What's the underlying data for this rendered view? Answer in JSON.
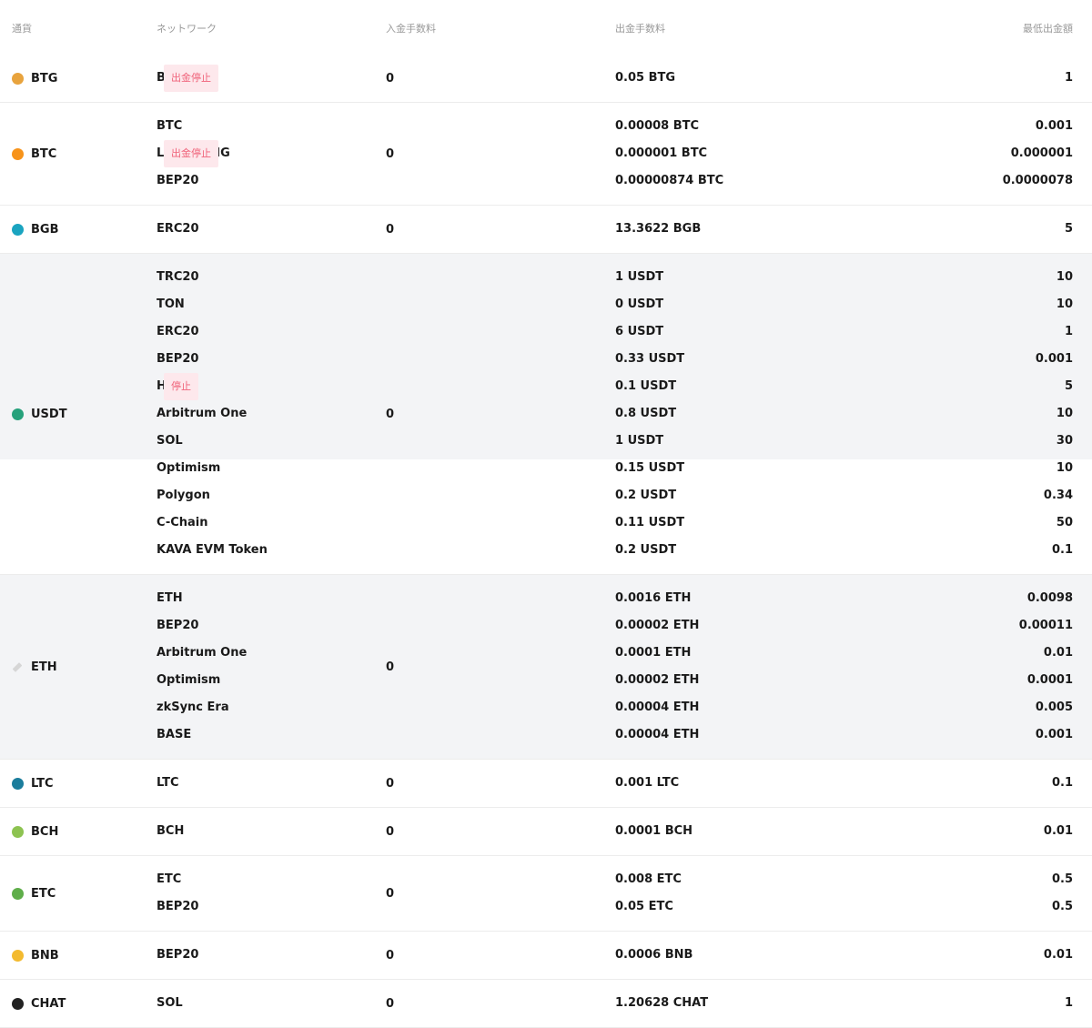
{
  "table": {
    "headers": [
      "通貨",
      "ネットワーク",
      "入金手数料",
      "出金手数料",
      "最低出金額"
    ],
    "rows": [
      {
        "currency": "BTG",
        "deposit_fee": "0",
        "networks": [
          {
            "name": "BTG",
            "badge": "出金停止",
            "withdraw_fee": "0.05 BTG",
            "min_withdrawal": "1"
          }
        ]
      },
      {
        "currency": "BTC",
        "deposit_fee": "0",
        "networks": [
          {
            "name": "BTC",
            "withdraw_fee": "0.00008 BTC",
            "min_withdrawal": "0.001"
          },
          {
            "name": "LIGHTNING",
            "badge": "出金停止",
            "withdraw_fee": "0.000001 BTC",
            "min_withdrawal": "0.000001"
          },
          {
            "name": "BEP20",
            "withdraw_fee": "0.00000874 BTC",
            "min_withdrawal": "0.0000078"
          }
        ]
      },
      {
        "currency": "BGB",
        "deposit_fee": "0",
        "networks": [
          {
            "name": "ERC20",
            "withdraw_fee": "13.3622 BGB",
            "min_withdrawal": "5"
          }
        ]
      },
      {
        "currency": "USDT",
        "deposit_fee": "0",
        "networks": [
          {
            "name": "TRC20",
            "withdraw_fee": "1 USDT",
            "min_withdrawal": "10"
          },
          {
            "name": "TON",
            "withdraw_fee": "0 USDT",
            "min_withdrawal": "10"
          },
          {
            "name": "ERC20",
            "withdraw_fee": "6 USDT",
            "min_withdrawal": "1"
          },
          {
            "name": "BEP20",
            "withdraw_fee": "0.33 USDT",
            "min_withdrawal": "0.001"
          },
          {
            "name": "HECO",
            "badge": "停止",
            "withdraw_fee": "0.1 USDT",
            "min_withdrawal": "5"
          },
          {
            "name": "Arbitrum One",
            "withdraw_fee": "0.8 USDT",
            "min_withdrawal": "10"
          },
          {
            "name": "SOL",
            "withdraw_fee": "1 USDT",
            "min_withdrawal": "30"
          },
          {
            "name": "Optimism",
            "withdraw_fee": "0.15 USDT",
            "min_withdrawal": "10"
          },
          {
            "name": "Polygon",
            "withdraw_fee": "0.2 USDT",
            "min_withdrawal": "0.34"
          },
          {
            "name": "C-Chain",
            "withdraw_fee": "0.11 USDT",
            "min_withdrawal": "50"
          },
          {
            "name": "KAVA EVM Token",
            "withdraw_fee": "0.2 USDT",
            "min_withdrawal": "0.1"
          }
        ]
      },
      {
        "currency": "ETH",
        "deposit_fee": "0",
        "networks": [
          {
            "name": "ETH",
            "withdraw_fee": "0.0016 ETH",
            "min_withdrawal": "0.0098"
          },
          {
            "name": "BEP20",
            "withdraw_fee": "0.00002 ETH",
            "min_withdrawal": "0.00011"
          },
          {
            "name": "Arbitrum One",
            "withdraw_fee": "0.0001 ETH",
            "min_withdrawal": "0.01"
          },
          {
            "name": "Optimism",
            "withdraw_fee": "0.00002 ETH",
            "min_withdrawal": "0.0001"
          },
          {
            "name": "zkSync Era",
            "withdraw_fee": "0.00004 ETH",
            "min_withdrawal": "0.005"
          },
          {
            "name": "BASE",
            "withdraw_fee": "0.00004 ETH",
            "min_withdrawal": "0.001"
          }
        ]
      },
      {
        "currency": "LTC",
        "deposit_fee": "0",
        "networks": [
          {
            "name": "LTC",
            "withdraw_fee": "0.001 LTC",
            "min_withdrawal": "0.1"
          }
        ]
      },
      {
        "currency": "BCH",
        "deposit_fee": "0",
        "networks": [
          {
            "name": "BCH",
            "withdraw_fee": "0.0001 BCH",
            "min_withdrawal": "0.01"
          }
        ]
      },
      {
        "currency": "ETC",
        "deposit_fee": "0",
        "networks": [
          {
            "name": "ETC",
            "withdraw_fee": "0.008 ETC",
            "min_withdrawal": "0.5"
          },
          {
            "name": "BEP20",
            "withdraw_fee": "0.05 ETC",
            "min_withdrawal": "0.5"
          }
        ]
      },
      {
        "currency": "BNB",
        "deposit_fee": "0",
        "networks": [
          {
            "name": "BEP20",
            "withdraw_fee": "0.0006 BNB",
            "min_withdrawal": "0.01"
          }
        ]
      },
      {
        "currency": "CHAT",
        "deposit_fee": "0",
        "networks": [
          {
            "name": "SOL",
            "withdraw_fee": "1.20628 CHAT",
            "min_withdrawal": "1"
          }
        ]
      }
    ]
  }
}
